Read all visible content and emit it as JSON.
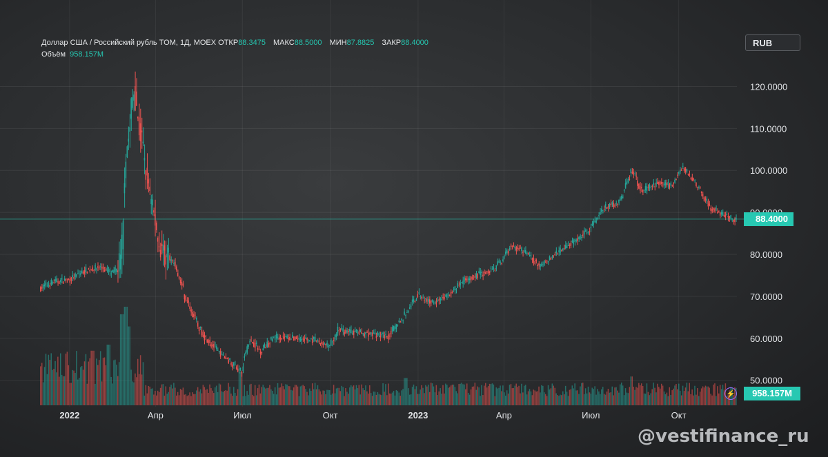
{
  "header": {
    "title": "Доллар США / Российский рубль TOM, 1Д, MOEX",
    "open_label": "ОТКР",
    "open_value": "88.3475",
    "high_label": "МАКС",
    "high_value": "88.5000",
    "low_label": "МИН",
    "low_value": "87.8825",
    "close_label": "ЗАКР",
    "close_value": "88.4000",
    "volume_label": "Объём",
    "volume_value": "958.157M"
  },
  "currency_button": "RUB",
  "last_price": "88.4000",
  "last_volume": "958.157M",
  "watermark": "@vestifinance_ru",
  "colors": {
    "up": "#26a69a",
    "down": "#ef5350",
    "accent": "#27c8b2"
  },
  "icons": {
    "volume_badge": "lightning-icon"
  },
  "chart_data": {
    "type": "candlestick",
    "series_name": "Доллар США / Российский рубль TOM",
    "y_ticks": [
      "120.0000",
      "110.0000",
      "100.0000",
      "90.0000",
      "80.0000",
      "70.0000",
      "60.0000",
      "50.0000"
    ],
    "ylim": [
      47,
      125
    ],
    "x_ticks": [
      "2022",
      "Апр",
      "Июл",
      "Окт",
      "2023",
      "Апр",
      "Июл",
      "Окт"
    ],
    "x_ticks_bold": [
      "2022",
      "2023"
    ],
    "grid": true,
    "last_price_line": 88.4,
    "price_path": [
      [
        "2021-12-01",
        72
      ],
      [
        "2021-12-15",
        73.5
      ],
      [
        "2022-01-01",
        74
      ],
      [
        "2022-01-15",
        76
      ],
      [
        "2022-02-01",
        77
      ],
      [
        "2022-02-15",
        75.5
      ],
      [
        "2022-02-23",
        78
      ],
      [
        "2022-03-01",
        104
      ],
      [
        "2022-03-09",
        119
      ],
      [
        "2022-03-15",
        110
      ],
      [
        "2022-03-25",
        95
      ],
      [
        "2022-04-05",
        82
      ],
      [
        "2022-04-20",
        78
      ],
      [
        "2022-05-05",
        68
      ],
      [
        "2022-05-20",
        61
      ],
      [
        "2022-06-05",
        57
      ],
      [
        "2022-06-20",
        54
      ],
      [
        "2022-06-30",
        52
      ],
      [
        "2022-07-08",
        60
      ],
      [
        "2022-07-20",
        57
      ],
      [
        "2022-08-05",
        60.5
      ],
      [
        "2022-08-25",
        60
      ],
      [
        "2022-09-15",
        59.5
      ],
      [
        "2022-10-01",
        58
      ],
      [
        "2022-10-10",
        62
      ],
      [
        "2022-10-25",
        61.5
      ],
      [
        "2022-11-15",
        61
      ],
      [
        "2022-12-01",
        60.5
      ],
      [
        "2022-12-20",
        66
      ],
      [
        "2023-01-01",
        70.5
      ],
      [
        "2023-01-15",
        68.5
      ],
      [
        "2023-02-01",
        70
      ],
      [
        "2023-02-20",
        74
      ],
      [
        "2023-03-10",
        75.5
      ],
      [
        "2023-03-25",
        77
      ],
      [
        "2023-04-10",
        82
      ],
      [
        "2023-04-25",
        80.5
      ],
      [
        "2023-05-10",
        77
      ],
      [
        "2023-05-25",
        80
      ],
      [
        "2023-06-15",
        83
      ],
      [
        "2023-06-30",
        86
      ],
      [
        "2023-07-15",
        91
      ],
      [
        "2023-08-01",
        92.5
      ],
      [
        "2023-08-14",
        100
      ],
      [
        "2023-08-25",
        95
      ],
      [
        "2023-09-10",
        97
      ],
      [
        "2023-09-25",
        96.5
      ],
      [
        "2023-10-06",
        101
      ],
      [
        "2023-10-20",
        97
      ],
      [
        "2023-11-05",
        91
      ],
      [
        "2023-11-20",
        89
      ],
      [
        "2023-12-01",
        88.4
      ]
    ],
    "volume_spikes": [
      [
        "2022-02-24",
        6.0
      ],
      [
        "2022-03-01",
        6.5
      ],
      [
        "2022-03-04",
        5.2
      ],
      [
        "2022-02-10",
        4.0
      ],
      [
        "2021-12-10",
        3.0
      ],
      [
        "2022-01-25",
        3.6
      ],
      [
        "2022-06-29",
        2.2
      ],
      [
        "2022-12-20",
        1.8
      ],
      [
        "2023-08-14",
        1.9
      ]
    ]
  }
}
